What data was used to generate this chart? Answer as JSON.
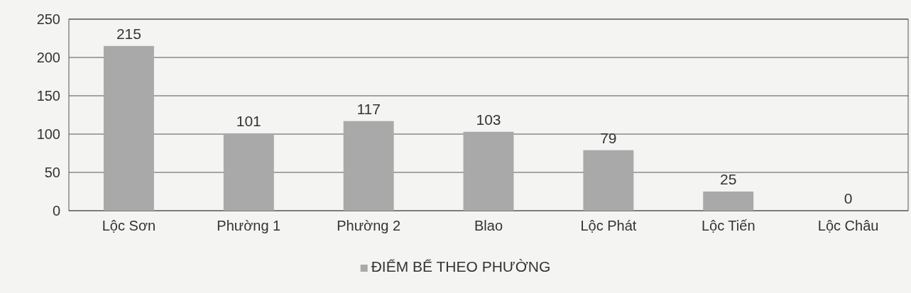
{
  "chart_data": {
    "type": "bar",
    "categories": [
      "Lộc Sơn",
      "Phường 1",
      "Phường 2",
      "Blao",
      "Lộc Phát",
      "Lộc Tiến",
      "Lộc Châu"
    ],
    "series": [
      {
        "name": "ĐIỂM BỂ THEO PHƯỜNG",
        "color": "#a9a9a9",
        "values": [
          215,
          101,
          117,
          103,
          79,
          25,
          0
        ]
      }
    ],
    "ylim": [
      0,
      250
    ],
    "yticks": [
      0,
      50,
      100,
      150,
      200,
      250
    ],
    "grid": "y",
    "legend": "bottom",
    "data_labels": true
  }
}
